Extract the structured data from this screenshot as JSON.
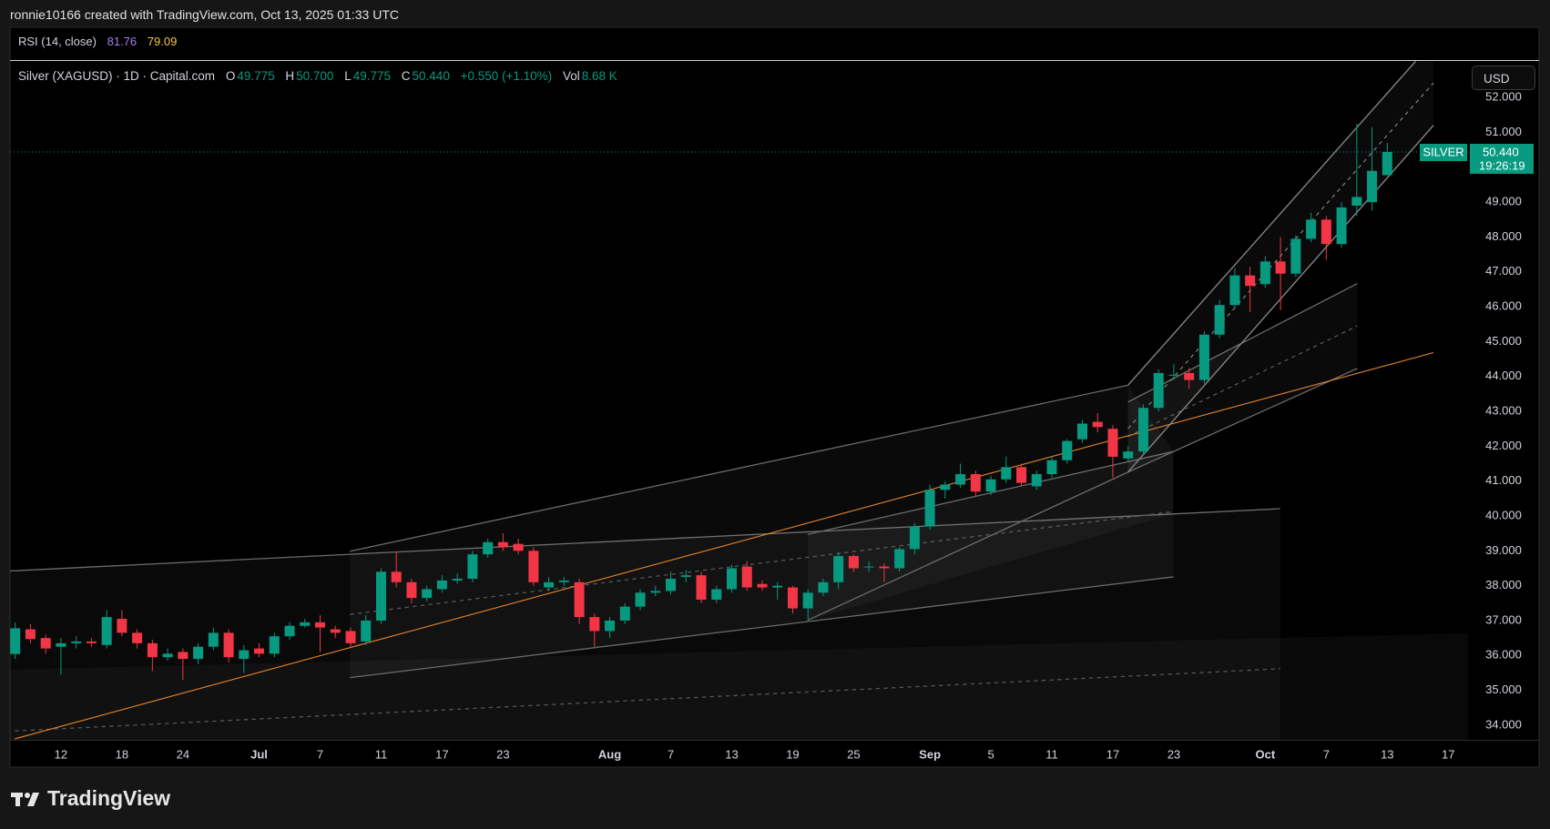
{
  "header": {
    "attribution": "ronnie10166 created with TradingView.com, Oct 13, 2025 01:33 UTC",
    "logo": "TradingView"
  },
  "indicator": {
    "name": "RSI (14, close)",
    "values": [
      "81.76",
      "79.09"
    ]
  },
  "chart_data": {
    "type": "candlestick",
    "title": "Silver (XAGUSD) · 1D · Capital.com",
    "legend_values": [
      {
        "label": "O",
        "value": "49.775"
      },
      {
        "label": "H",
        "value": "50.700"
      },
      {
        "label": "L",
        "value": "49.775"
      },
      {
        "label": "C",
        "value": "50.440"
      }
    ],
    "change": "+0.550 (+1.10%)",
    "volume": {
      "label": "Vol",
      "value": "8.68 K"
    },
    "currency": "USD",
    "price_label": {
      "name": "SILVER",
      "price": "50.440",
      "countdown": "19:26:19"
    },
    "up_color": "#089981",
    "down_color": "#f23645",
    "categories": [
      null,
      null,
      null,
      "12",
      null,
      null,
      null,
      "18",
      null,
      null,
      null,
      "24",
      null,
      null,
      null,
      null,
      "Jul",
      null,
      null,
      null,
      "7",
      null,
      null,
      null,
      "11",
      null,
      null,
      null,
      "17",
      null,
      null,
      null,
      "23",
      null,
      null,
      null,
      null,
      null,
      null,
      "Aug",
      null,
      null,
      null,
      "7",
      null,
      null,
      null,
      "13",
      null,
      null,
      null,
      "19",
      null,
      null,
      null,
      "25",
      null,
      null,
      null,
      null,
      "Sep",
      null,
      null,
      null,
      "5",
      null,
      null,
      null,
      "11",
      null,
      null,
      null,
      "17",
      null,
      null,
      null,
      "23",
      null,
      null,
      null,
      null,
      null,
      "Oct",
      null,
      null,
      null,
      "7",
      null,
      null,
      null,
      "13",
      null,
      null,
      null,
      "17"
    ],
    "open": [
      36.04,
      36.75,
      36.5,
      36.25,
      36.35,
      36.4,
      36.3,
      37.05,
      36.65,
      36.35,
      35.95,
      36.1,
      35.9,
      36.25,
      36.65,
      35.9,
      36.2,
      36.05,
      36.55,
      36.85,
      36.95,
      36.75,
      36.7,
      36.4,
      37.0,
      38.4,
      38.1,
      37.65,
      37.9,
      38.15,
      38.2,
      38.9,
      39.25,
      39.2,
      39.0,
      37.95,
      38.1,
      38.1,
      37.1,
      36.7,
      37.0,
      37.4,
      37.8,
      37.85,
      38.25,
      38.3,
      37.6,
      37.9,
      38.55,
      38.05,
      37.95,
      37.95,
      37.35,
      37.8,
      38.1,
      38.85,
      38.55,
      38.55,
      38.5,
      39.05,
      39.7,
      40.75,
      40.9,
      41.2,
      40.7,
      41.05,
      41.4,
      40.85,
      41.2,
      41.6,
      42.2,
      42.7,
      42.5,
      41.65,
      41.85,
      43.1,
      44.05,
      44.1,
      43.9,
      45.2,
      46.05,
      46.9,
      46.65,
      47.3,
      46.95,
      47.95,
      48.5,
      47.8,
      48.9,
      49.0,
      49.775,
      null,
      null,
      null,
      null
    ],
    "high": [
      36.95,
      36.9,
      36.6,
      36.5,
      36.55,
      36.5,
      37.3,
      37.3,
      36.75,
      36.45,
      36.2,
      36.2,
      36.35,
      36.8,
      36.75,
      36.3,
      36.35,
      36.65,
      36.95,
      37.05,
      37.15,
      36.85,
      36.8,
      37.15,
      38.5,
      38.95,
      38.2,
      38.0,
      38.3,
      38.35,
      39.0,
      39.35,
      39.5,
      39.35,
      39.1,
      38.25,
      38.25,
      38.2,
      37.2,
      37.1,
      37.5,
      37.9,
      38.0,
      38.4,
      38.45,
      38.4,
      38.0,
      38.6,
      38.7,
      38.15,
      38.1,
      38.0,
      37.9,
      38.2,
      38.95,
      38.9,
      38.7,
      38.65,
      39.1,
      39.8,
      40.9,
      41.0,
      41.5,
      41.3,
      41.15,
      41.7,
      41.5,
      41.3,
      41.7,
      42.2,
      42.75,
      42.95,
      42.6,
      42.0,
      43.2,
      44.2,
      44.35,
      44.25,
      45.3,
      46.2,
      47.1,
      47.15,
      47.45,
      48.0,
      48.05,
      48.7,
      48.6,
      49.0,
      51.25,
      51.15,
      50.7,
      null,
      null,
      null,
      null
    ],
    "low": [
      35.9,
      36.35,
      36.05,
      35.45,
      36.2,
      36.25,
      36.2,
      36.55,
      36.2,
      35.55,
      35.85,
      35.3,
      35.75,
      36.15,
      35.8,
      35.5,
      35.95,
      35.95,
      36.45,
      36.8,
      36.1,
      36.5,
      36.25,
      36.3,
      36.9,
      37.95,
      37.5,
      37.55,
      37.8,
      38.05,
      38.1,
      38.8,
      39.0,
      38.9,
      38.0,
      37.85,
      38.0,
      36.9,
      36.25,
      36.5,
      36.9,
      37.3,
      37.7,
      37.75,
      38.1,
      37.5,
      37.5,
      37.8,
      37.85,
      37.85,
      37.6,
      37.2,
      37.0,
      37.7,
      37.9,
      38.4,
      38.4,
      38.1,
      38.4,
      38.9,
      39.6,
      40.5,
      40.8,
      40.55,
      40.6,
      40.95,
      40.85,
      40.75,
      41.1,
      41.5,
      42.1,
      42.4,
      41.1,
      41.55,
      41.75,
      43.0,
      43.9,
      43.65,
      43.8,
      45.1,
      45.95,
      45.85,
      46.55,
      45.9,
      46.85,
      47.85,
      47.35,
      47.7,
      48.6,
      48.75,
      49.775,
      null,
      null,
      null,
      null
    ],
    "close": [
      36.78,
      36.47,
      36.2,
      36.35,
      36.4,
      36.35,
      37.1,
      36.65,
      36.35,
      35.95,
      36.05,
      35.9,
      36.25,
      36.65,
      35.95,
      36.15,
      36.05,
      36.55,
      36.85,
      36.95,
      36.8,
      36.65,
      36.35,
      37.0,
      38.4,
      38.1,
      37.65,
      37.9,
      38.15,
      38.2,
      38.9,
      39.25,
      39.1,
      39.0,
      38.1,
      38.1,
      38.15,
      37.1,
      36.7,
      37.0,
      37.4,
      37.8,
      37.85,
      38.2,
      38.3,
      37.6,
      37.9,
      38.5,
      37.95,
      37.95,
      38.0,
      37.35,
      37.8,
      38.1,
      38.85,
      38.5,
      38.55,
      38.5,
      39.05,
      39.7,
      40.75,
      40.9,
      41.2,
      40.7,
      41.05,
      41.4,
      40.95,
      41.2,
      41.6,
      42.15,
      42.65,
      42.55,
      41.7,
      41.85,
      43.1,
      44.1,
      44.05,
      43.9,
      45.2,
      46.05,
      46.9,
      46.6,
      47.3,
      46.95,
      47.95,
      48.5,
      47.8,
      48.85,
      49.15,
      49.9,
      50.44,
      null,
      null,
      null,
      null
    ],
    "ylim": [
      33.58,
      53.05
    ],
    "yticks": [
      {
        "value": 34,
        "label": "34.000"
      },
      {
        "value": 35,
        "label": "35.000"
      },
      {
        "value": 36,
        "label": "36.000"
      },
      {
        "value": 37,
        "label": "37.000"
      },
      {
        "value": 38,
        "label": "38.000"
      },
      {
        "value": 39,
        "label": "39.000"
      },
      {
        "value": 40,
        "label": "40.000"
      },
      {
        "value": 41,
        "label": "41.000"
      },
      {
        "value": 42,
        "label": "42.000"
      },
      {
        "value": 43,
        "label": "43.000"
      },
      {
        "value": 44,
        "label": "44.000"
      },
      {
        "value": 45,
        "label": "45.000"
      },
      {
        "value": 46,
        "label": "46.000"
      },
      {
        "value": 47,
        "label": "47.000"
      },
      {
        "value": 48,
        "label": "48.000"
      },
      {
        "value": 49,
        "label": "49.000"
      },
      {
        "value": 51,
        "label": "51.000"
      },
      {
        "value": 52,
        "label": "52.000"
      }
    ]
  }
}
